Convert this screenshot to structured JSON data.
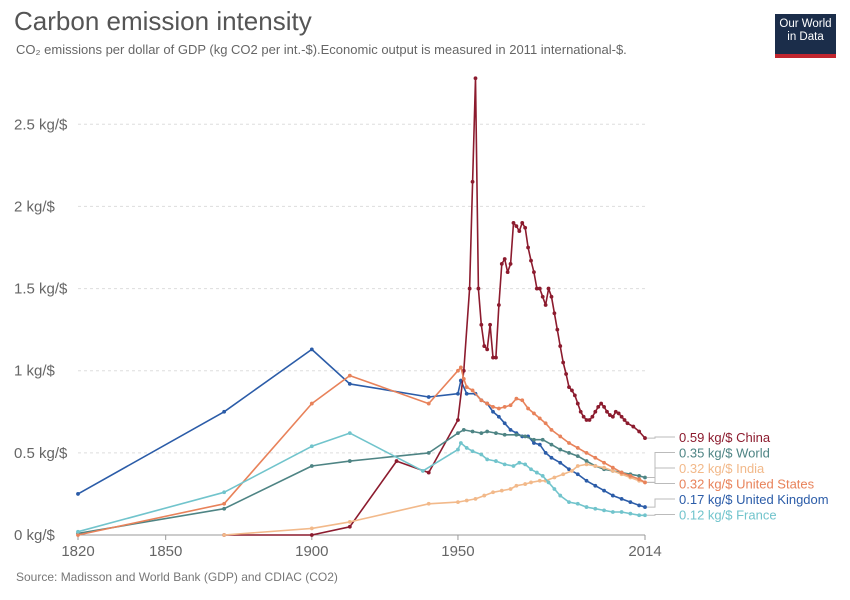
{
  "header": {
    "title": "Carbon emission intensity",
    "subtitle": "CO₂ emissions per dollar of GDP (kg CO2 per int.-$).Economic output is measured in 2011 international-$.",
    "logo_line1": "Our World",
    "logo_line2": "in Data"
  },
  "footer": {
    "source": "Source: Madisson and World Bank (GDP) and CDIAC (CO2)"
  },
  "chart_data": {
    "type": "line",
    "title": "Carbon emission intensity",
    "xlabel": "",
    "ylabel": "kg CO2 per int.-$",
    "xlim": [
      1820,
      2014
    ],
    "ylim": [
      0,
      2.8
    ],
    "x_ticks": [
      "1820",
      "1850",
      "1900",
      "1950",
      "2014"
    ],
    "y_ticks": [
      "0 kg/$",
      "0.5 kg/$",
      "1 kg/$",
      "1.5 kg/$",
      "2 kg/$",
      "2.5 kg/$"
    ],
    "grid": true,
    "legend": "end-labels-right",
    "series": [
      {
        "name": "United Kingdom",
        "label": "0.17 kg/$ United Kingdom",
        "color": "#2b5ca8",
        "points": [
          [
            1820,
            0.25
          ],
          [
            1870,
            0.75
          ],
          [
            1900,
            1.13
          ],
          [
            1913,
            0.92
          ],
          [
            1940,
            0.84
          ],
          [
            1950,
            0.86
          ],
          [
            1951,
            0.94
          ],
          [
            1953,
            0.86
          ],
          [
            1956,
            0.86
          ],
          [
            1958,
            0.82
          ],
          [
            1960,
            0.8
          ],
          [
            1962,
            0.75
          ],
          [
            1964,
            0.72
          ],
          [
            1966,
            0.68
          ],
          [
            1968,
            0.64
          ],
          [
            1970,
            0.62
          ],
          [
            1972,
            0.6
          ],
          [
            1974,
            0.6
          ],
          [
            1976,
            0.56
          ],
          [
            1978,
            0.55
          ],
          [
            1980,
            0.5
          ],
          [
            1982,
            0.47
          ],
          [
            1985,
            0.44
          ],
          [
            1988,
            0.4
          ],
          [
            1991,
            0.37
          ],
          [
            1994,
            0.33
          ],
          [
            1997,
            0.3
          ],
          [
            2000,
            0.27
          ],
          [
            2003,
            0.24
          ],
          [
            2006,
            0.22
          ],
          [
            2009,
            0.2
          ],
          [
            2012,
            0.18
          ],
          [
            2014,
            0.17
          ]
        ]
      },
      {
        "name": "China",
        "label": "0.59 kg/$ China",
        "color": "#8c1b2e",
        "points": [
          [
            1870,
            0
          ],
          [
            1900,
            0
          ],
          [
            1913,
            0.05
          ],
          [
            1929,
            0.45
          ],
          [
            1940,
            0.38
          ],
          [
            1950,
            0.7
          ],
          [
            1952,
            1.0
          ],
          [
            1954,
            1.5
          ],
          [
            1955,
            2.15
          ],
          [
            1956,
            2.78
          ],
          [
            1957,
            1.5
          ],
          [
            1958,
            1.28
          ],
          [
            1959,
            1.15
          ],
          [
            1960,
            1.13
          ],
          [
            1961,
            1.28
          ],
          [
            1962,
            1.08
          ],
          [
            1963,
            1.08
          ],
          [
            1964,
            1.4
          ],
          [
            1965,
            1.65
          ],
          [
            1966,
            1.68
          ],
          [
            1967,
            1.6
          ],
          [
            1968,
            1.65
          ],
          [
            1969,
            1.9
          ],
          [
            1970,
            1.88
          ],
          [
            1971,
            1.85
          ],
          [
            1972,
            1.9
          ],
          [
            1973,
            1.87
          ],
          [
            1974,
            1.75
          ],
          [
            1975,
            1.67
          ],
          [
            1976,
            1.6
          ],
          [
            1977,
            1.5
          ],
          [
            1978,
            1.5
          ],
          [
            1979,
            1.45
          ],
          [
            1980,
            1.4
          ],
          [
            1981,
            1.5
          ],
          [
            1982,
            1.45
          ],
          [
            1983,
            1.35
          ],
          [
            1984,
            1.25
          ],
          [
            1985,
            1.15
          ],
          [
            1986,
            1.05
          ],
          [
            1987,
            0.98
          ],
          [
            1988,
            0.9
          ],
          [
            1989,
            0.88
          ],
          [
            1990,
            0.85
          ],
          [
            1991,
            0.8
          ],
          [
            1992,
            0.75
          ],
          [
            1993,
            0.72
          ],
          [
            1994,
            0.7
          ],
          [
            1995,
            0.7
          ],
          [
            1996,
            0.72
          ],
          [
            1997,
            0.75
          ],
          [
            1998,
            0.78
          ],
          [
            1999,
            0.8
          ],
          [
            2000,
            0.78
          ],
          [
            2001,
            0.75
          ],
          [
            2002,
            0.73
          ],
          [
            2003,
            0.72
          ],
          [
            2004,
            0.75
          ],
          [
            2005,
            0.74
          ],
          [
            2006,
            0.72
          ],
          [
            2007,
            0.7
          ],
          [
            2008,
            0.68
          ],
          [
            2010,
            0.66
          ],
          [
            2012,
            0.63
          ],
          [
            2014,
            0.59
          ]
        ]
      },
      {
        "name": "World",
        "label": "0.35 kg/$ World",
        "color": "#4e8484",
        "points": [
          [
            1820,
            0.01
          ],
          [
            1870,
            0.16
          ],
          [
            1900,
            0.42
          ],
          [
            1913,
            0.45
          ],
          [
            1940,
            0.5
          ],
          [
            1950,
            0.62
          ],
          [
            1952,
            0.64
          ],
          [
            1955,
            0.63
          ],
          [
            1958,
            0.62
          ],
          [
            1960,
            0.63
          ],
          [
            1963,
            0.62
          ],
          [
            1966,
            0.61
          ],
          [
            1970,
            0.61
          ],
          [
            1973,
            0.6
          ],
          [
            1976,
            0.58
          ],
          [
            1979,
            0.58
          ],
          [
            1982,
            0.55
          ],
          [
            1985,
            0.52
          ],
          [
            1988,
            0.5
          ],
          [
            1991,
            0.48
          ],
          [
            1994,
            0.45
          ],
          [
            1997,
            0.42
          ],
          [
            2000,
            0.4
          ],
          [
            2003,
            0.39
          ],
          [
            2006,
            0.38
          ],
          [
            2009,
            0.37
          ],
          [
            2012,
            0.36
          ],
          [
            2014,
            0.35
          ]
        ]
      },
      {
        "name": "India",
        "label": "0.32 kg/$ India",
        "color": "#f2b98a",
        "points": [
          [
            1870,
            0
          ],
          [
            1900,
            0.04
          ],
          [
            1913,
            0.08
          ],
          [
            1940,
            0.19
          ],
          [
            1950,
            0.2
          ],
          [
            1953,
            0.21
          ],
          [
            1956,
            0.22
          ],
          [
            1959,
            0.24
          ],
          [
            1962,
            0.26
          ],
          [
            1965,
            0.27
          ],
          [
            1968,
            0.28
          ],
          [
            1970,
            0.3
          ],
          [
            1973,
            0.31
          ],
          [
            1975,
            0.32
          ],
          [
            1978,
            0.33
          ],
          [
            1980,
            0.33
          ],
          [
            1983,
            0.35
          ],
          [
            1986,
            0.37
          ],
          [
            1989,
            0.39
          ],
          [
            1991,
            0.42
          ],
          [
            1994,
            0.43
          ],
          [
            1997,
            0.42
          ],
          [
            2000,
            0.41
          ],
          [
            2003,
            0.39
          ],
          [
            2006,
            0.37
          ],
          [
            2009,
            0.35
          ],
          [
            2012,
            0.33
          ],
          [
            2014,
            0.32
          ]
        ]
      },
      {
        "name": "United States",
        "label": "0.32 kg/$ United States",
        "color": "#e8825a",
        "points": [
          [
            1820,
            0
          ],
          [
            1870,
            0.19
          ],
          [
            1900,
            0.8
          ],
          [
            1913,
            0.97
          ],
          [
            1940,
            0.8
          ],
          [
            1950,
            1.0
          ],
          [
            1951,
            1.02
          ],
          [
            1952,
            0.95
          ],
          [
            1953,
            0.9
          ],
          [
            1955,
            0.88
          ],
          [
            1958,
            0.82
          ],
          [
            1960,
            0.8
          ],
          [
            1962,
            0.78
          ],
          [
            1964,
            0.77
          ],
          [
            1966,
            0.78
          ],
          [
            1968,
            0.79
          ],
          [
            1970,
            0.83
          ],
          [
            1972,
            0.82
          ],
          [
            1974,
            0.77
          ],
          [
            1976,
            0.74
          ],
          [
            1978,
            0.71
          ],
          [
            1980,
            0.68
          ],
          [
            1982,
            0.64
          ],
          [
            1985,
            0.6
          ],
          [
            1988,
            0.56
          ],
          [
            1991,
            0.53
          ],
          [
            1994,
            0.5
          ],
          [
            1997,
            0.47
          ],
          [
            2000,
            0.44
          ],
          [
            2003,
            0.41
          ],
          [
            2006,
            0.38
          ],
          [
            2009,
            0.36
          ],
          [
            2012,
            0.34
          ],
          [
            2014,
            0.32
          ]
        ]
      },
      {
        "name": "France",
        "label": "0.12 kg/$ France",
        "color": "#71c4cc",
        "points": [
          [
            1820,
            0.02
          ],
          [
            1870,
            0.26
          ],
          [
            1900,
            0.54
          ],
          [
            1913,
            0.62
          ],
          [
            1938,
            0.39
          ],
          [
            1950,
            0.52
          ],
          [
            1951,
            0.56
          ],
          [
            1953,
            0.53
          ],
          [
            1955,
            0.51
          ],
          [
            1958,
            0.49
          ],
          [
            1960,
            0.46
          ],
          [
            1963,
            0.45
          ],
          [
            1966,
            0.43
          ],
          [
            1969,
            0.42
          ],
          [
            1971,
            0.44
          ],
          [
            1973,
            0.43
          ],
          [
            1975,
            0.4
          ],
          [
            1977,
            0.38
          ],
          [
            1979,
            0.36
          ],
          [
            1981,
            0.32
          ],
          [
            1983,
            0.28
          ],
          [
            1985,
            0.24
          ],
          [
            1988,
            0.2
          ],
          [
            1991,
            0.19
          ],
          [
            1994,
            0.17
          ],
          [
            1997,
            0.16
          ],
          [
            2000,
            0.15
          ],
          [
            2003,
            0.14
          ],
          [
            2006,
            0.14
          ],
          [
            2009,
            0.13
          ],
          [
            2012,
            0.12
          ],
          [
            2014,
            0.12
          ]
        ]
      }
    ]
  }
}
